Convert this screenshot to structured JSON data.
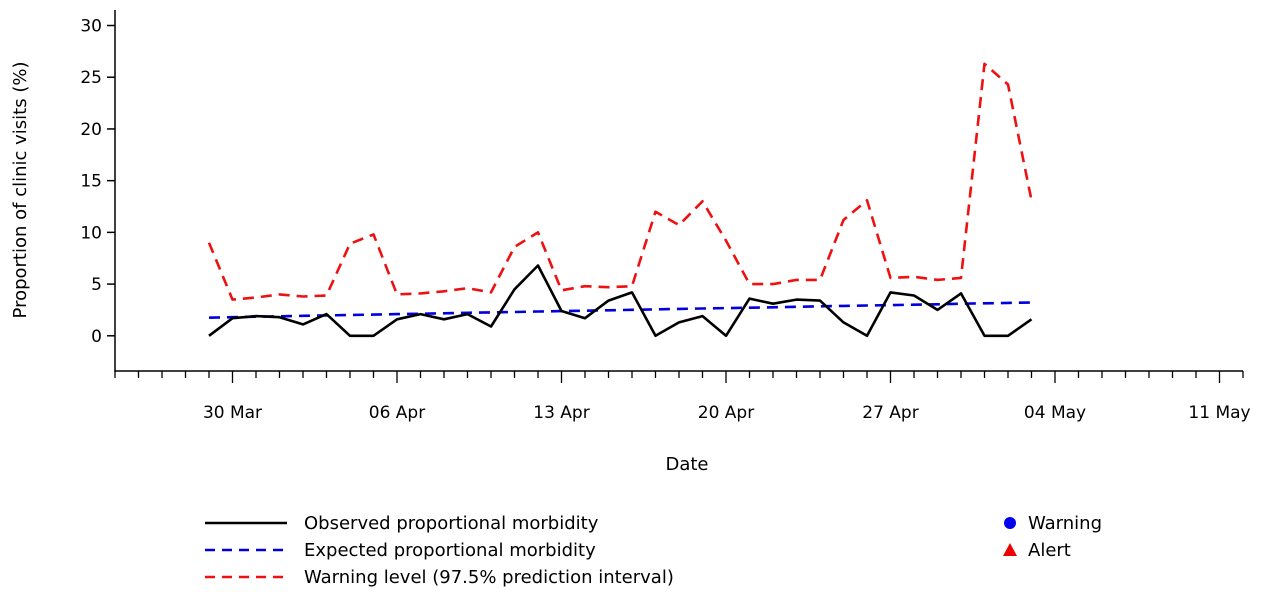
{
  "chart_data": {
    "type": "line",
    "xlabel": "Date",
    "ylabel": "Proportion of clinic visits (%)",
    "ylim": [
      -3.5,
      31.5
    ],
    "yticks": [
      0,
      5,
      10,
      15,
      20,
      25,
      30
    ],
    "xlim": [
      "2020-03-25",
      "2020-05-12"
    ],
    "xticks": [
      {
        "date": "2020-03-30",
        "label": "30 Mar"
      },
      {
        "date": "2020-04-06",
        "label": "06 Apr"
      },
      {
        "date": "2020-04-13",
        "label": "13 Apr"
      },
      {
        "date": "2020-04-20",
        "label": "20 Apr"
      },
      {
        "date": "2020-04-27",
        "label": "27 Apr"
      },
      {
        "date": "2020-05-04",
        "label": "04 May"
      },
      {
        "date": "2020-05-11",
        "label": "11 May"
      }
    ],
    "x": [
      "2020-03-29",
      "2020-03-30",
      "2020-03-31",
      "2020-04-01",
      "2020-04-02",
      "2020-04-03",
      "2020-04-04",
      "2020-04-05",
      "2020-04-06",
      "2020-04-07",
      "2020-04-08",
      "2020-04-09",
      "2020-04-10",
      "2020-04-11",
      "2020-04-12",
      "2020-04-13",
      "2020-04-14",
      "2020-04-15",
      "2020-04-16",
      "2020-04-17",
      "2020-04-18",
      "2020-04-19",
      "2020-04-20",
      "2020-04-21",
      "2020-04-22",
      "2020-04-23",
      "2020-04-24",
      "2020-04-25",
      "2020-04-26",
      "2020-04-27",
      "2020-04-28",
      "2020-04-29",
      "2020-04-30",
      "2020-05-01",
      "2020-05-02",
      "2020-05-03"
    ],
    "series": [
      {
        "name": "Observed proportional morbidity",
        "color": "#000000",
        "style": "solid",
        "values": [
          0,
          1.7,
          1.9,
          1.8,
          1.1,
          2.1,
          0,
          0,
          1.6,
          2.1,
          1.6,
          2.1,
          0.9,
          4.5,
          6.8,
          2.4,
          1.7,
          3.4,
          4.2,
          0,
          1.3,
          1.9,
          0,
          3.6,
          3.1,
          3.5,
          3.4,
          1.3,
          0,
          4.2,
          3.9,
          2.5,
          4.1,
          0,
          0,
          1.6
        ]
      },
      {
        "name": "Expected proportional morbidity",
        "color": "#0000dd",
        "style": "dashed",
        "values": [
          1.75,
          1.8,
          1.85,
          1.89,
          1.93,
          1.97,
          2.01,
          2.05,
          2.1,
          2.14,
          2.18,
          2.22,
          2.26,
          2.3,
          2.35,
          2.39,
          2.43,
          2.47,
          2.51,
          2.55,
          2.6,
          2.64,
          2.68,
          2.72,
          2.76,
          2.8,
          2.85,
          2.89,
          2.93,
          2.97,
          3.01,
          3.05,
          3.1,
          3.14,
          3.18,
          3.22
        ]
      },
      {
        "name": "Warning level (97.5% prediction interval)",
        "color": "#ee1111",
        "style": "dashed",
        "values": [
          9,
          3.5,
          3.7,
          4,
          3.8,
          3.9,
          8.9,
          9.8,
          4,
          4.1,
          4.3,
          4.6,
          4.2,
          8.6,
          10,
          4.4,
          4.8,
          4.7,
          4.8,
          12,
          10.7,
          13,
          9.2,
          5,
          5,
          5.4,
          5.4,
          11.2,
          13.1,
          5.6,
          5.7,
          5.4,
          5.6,
          26.3,
          24.3,
          13.1
        ]
      }
    ],
    "markers": [
      {
        "name": "Warning",
        "color": "#0000ee",
        "shape": "circle"
      },
      {
        "name": "Alert",
        "color": "#ee0000",
        "shape": "triangle"
      }
    ],
    "grid": false,
    "legend_position": "bottom"
  }
}
